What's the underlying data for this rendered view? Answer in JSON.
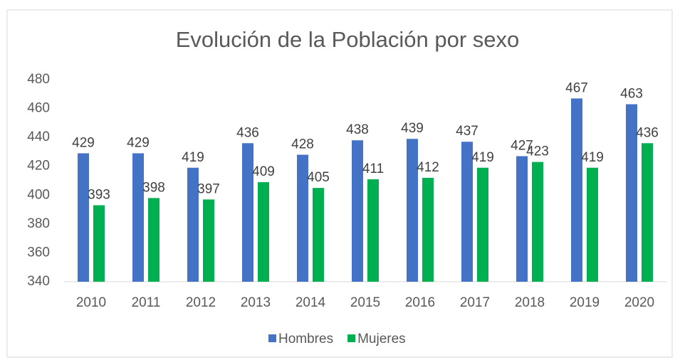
{
  "chart_data": {
    "type": "bar",
    "title": "Evolución de la Población por sexo",
    "categories": [
      "2010",
      "2011",
      "2012",
      "2013",
      "2014",
      "2015",
      "2016",
      "2017",
      "2018",
      "2019",
      "2020"
    ],
    "series": [
      {
        "name": "Hombres",
        "color": "#4472c4",
        "values": [
          429,
          429,
          419,
          436,
          428,
          438,
          439,
          437,
          427,
          467,
          463
        ]
      },
      {
        "name": "Mujeres",
        "color": "#00b050",
        "values": [
          393,
          398,
          397,
          409,
          405,
          411,
          412,
          419,
          423,
          419,
          436
        ]
      }
    ],
    "ylim": [
      340,
      480
    ],
    "yticks": [
      340,
      360,
      380,
      400,
      420,
      440,
      460,
      480
    ],
    "grid": false,
    "legend": "bottom"
  }
}
